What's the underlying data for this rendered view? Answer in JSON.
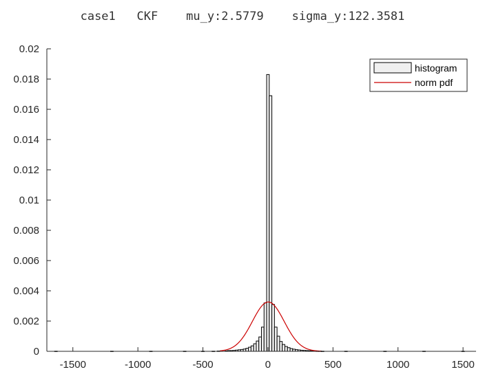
{
  "chart_data": {
    "type": "bar",
    "title": "case1   CKF    mu_y:2.5779    sigma_y:122.3581",
    "xlabel": "",
    "ylabel": "",
    "xlim": [
      -1700,
      1600
    ],
    "ylim": [
      0,
      0.02
    ],
    "xticks": [
      -1500,
      -1000,
      -500,
      0,
      500,
      1000,
      1500
    ],
    "xtick_labels": [
      "-1500",
      "-1000",
      "-500",
      "0",
      "500",
      "1000",
      "1500"
    ],
    "yticks": [
      0,
      0.002,
      0.004,
      0.006,
      0.008,
      0.01,
      0.012,
      0.014,
      0.016,
      0.018,
      0.02
    ],
    "ytick_labels": [
      "0",
      "0.002",
      "0.004",
      "0.006",
      "0.008",
      "0.01",
      "0.012",
      "0.014",
      "0.016",
      "0.018",
      "0.02"
    ],
    "legend": {
      "position": "top-right",
      "entries": [
        "histogram",
        "norm pdf"
      ]
    },
    "grid": false,
    "series": [
      {
        "name": "histogram",
        "kind": "bar",
        "color": "#f0f0f0",
        "edge_color": "#000000",
        "bin_width": 20,
        "bin_centers": [
          -1630,
          -1200,
          -900,
          -640,
          -500,
          -420,
          -380,
          -320,
          -300,
          -280,
          -260,
          -240,
          -220,
          -200,
          -180,
          -160,
          -140,
          -120,
          -100,
          -80,
          -60,
          -40,
          -20,
          0,
          20,
          40,
          60,
          80,
          100,
          120,
          140,
          160,
          180,
          200,
          220,
          240,
          260,
          280,
          300,
          320,
          340,
          360,
          380,
          400,
          420,
          600,
          900,
          1200,
          1500
        ],
        "values": [
          1e-05,
          1e-05,
          1e-05,
          1e-05,
          1e-05,
          1e-05,
          2e-05,
          3e-05,
          5e-05,
          5e-05,
          6e-05,
          8e-05,
          0.0001,
          0.00012,
          0.00015,
          0.0002,
          0.00027,
          0.00036,
          0.0005,
          0.00068,
          0.00095,
          0.0016,
          0.0032,
          0.0183,
          0.0169,
          0.0031,
          0.0016,
          0.001,
          0.00065,
          0.00045,
          0.00032,
          0.00024,
          0.00018,
          0.00014,
          0.00011,
          9e-05,
          7e-05,
          6e-05,
          5e-05,
          4e-05,
          3e-05,
          3e-05,
          2e-05,
          2e-05,
          1e-05,
          1e-05,
          1e-05,
          1e-05,
          1e-05
        ]
      },
      {
        "name": "norm pdf",
        "kind": "line",
        "color": "#cc0000",
        "mu": 2.5779,
        "sigma": 122.3581,
        "x_range": [
          -370,
          410
        ]
      }
    ]
  }
}
